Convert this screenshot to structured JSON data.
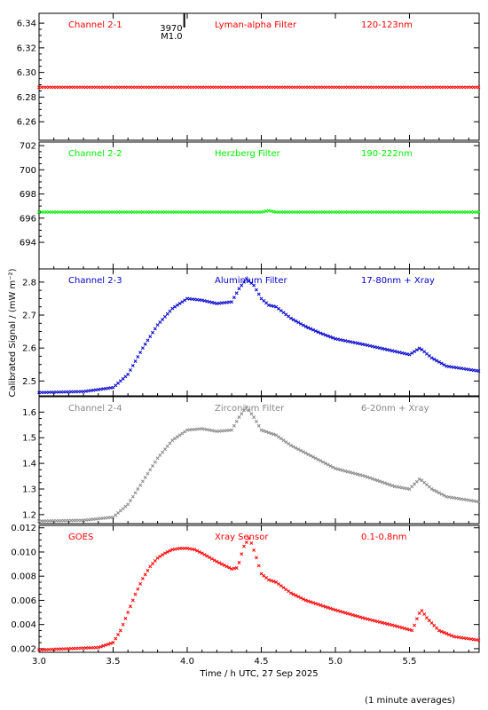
{
  "chart_data": {
    "type": "scatter",
    "xlabel": "Time / h UTC, 27 Sep 2025",
    "ylabel": "Calibrated Signal / (mW m⁻²)",
    "footnote": "(1 minute averages)",
    "xlim": [
      3.0,
      5.97
    ],
    "x_ticks": [
      "3.0",
      "3.5",
      "4.0",
      "4.5",
      "5.0",
      "5.5"
    ],
    "x_tick_values": [
      3.0,
      3.5,
      4.0,
      4.5,
      5.0,
      5.5
    ],
    "annotation": {
      "x": 3.98,
      "lines": [
        "3970",
        "M1.0"
      ]
    },
    "panels": [
      {
        "channel": "Channel 2-1",
        "filter": "Lyman-alpha Filter",
        "band": "120-123nm",
        "color": "#ff0000",
        "ylim": [
          6.245,
          6.348
        ],
        "y_ticks": [
          "6.26",
          "6.28",
          "6.30",
          "6.32",
          "6.34"
        ],
        "y_tick_values": [
          6.26,
          6.28,
          6.3,
          6.32,
          6.34
        ],
        "x": [
          3.0,
          5.97
        ],
        "y": [
          6.288,
          6.288
        ]
      },
      {
        "channel": "Channel 2-2",
        "filter": "Herzberg Filter",
        "band": "190-222nm",
        "color": "#00ee00",
        "ylim": [
          691.8,
          702.3
        ],
        "y_ticks": [
          "694",
          "696",
          "698",
          "700",
          "702"
        ],
        "y_tick_values": [
          694,
          696,
          698,
          700,
          702
        ],
        "x": [
          3.0,
          4.5,
          4.55,
          4.6,
          5.97
        ],
        "y": [
          696.5,
          696.5,
          696.62,
          696.5,
          696.5
        ]
      },
      {
        "channel": "Channel 2-3",
        "filter": "Aluminium Filter",
        "band": "17-80nm + Xray",
        "color": "#0000cc",
        "ylim": [
          2.455,
          2.84
        ],
        "y_ticks": [
          "2.5",
          "2.6",
          "2.7",
          "2.8"
        ],
        "y_tick_values": [
          2.5,
          2.6,
          2.7,
          2.8
        ],
        "x": [
          3.0,
          3.3,
          3.5,
          3.6,
          3.7,
          3.8,
          3.9,
          4.0,
          4.1,
          4.2,
          4.3,
          4.35,
          4.4,
          4.45,
          4.5,
          4.55,
          4.6,
          4.7,
          4.8,
          4.9,
          5.0,
          5.2,
          5.4,
          5.5,
          5.57,
          5.65,
          5.75,
          5.97
        ],
        "y": [
          2.465,
          2.468,
          2.48,
          2.52,
          2.6,
          2.67,
          2.72,
          2.75,
          2.745,
          2.735,
          2.74,
          2.78,
          2.81,
          2.79,
          2.75,
          2.73,
          2.725,
          2.69,
          2.665,
          2.645,
          2.628,
          2.61,
          2.59,
          2.58,
          2.6,
          2.57,
          2.545,
          2.53
        ]
      },
      {
        "channel": "Channel 2-4",
        "filter": "Zirconium Filter",
        "band": "6-20nm + Xray",
        "color": "#888888",
        "ylim": [
          1.165,
          1.66
        ],
        "y_ticks": [
          "1.2",
          "1.3",
          "1.4",
          "1.5",
          "1.6"
        ],
        "y_tick_values": [
          1.2,
          1.3,
          1.4,
          1.5,
          1.6
        ],
        "x": [
          3.0,
          3.3,
          3.5,
          3.6,
          3.7,
          3.8,
          3.9,
          4.0,
          4.1,
          4.2,
          4.3,
          4.35,
          4.4,
          4.45,
          4.5,
          4.55,
          4.6,
          4.7,
          4.8,
          4.9,
          5.0,
          5.2,
          5.4,
          5.5,
          5.57,
          5.65,
          5.75,
          5.97
        ],
        "y": [
          1.175,
          1.178,
          1.19,
          1.24,
          1.33,
          1.42,
          1.49,
          1.53,
          1.535,
          1.525,
          1.53,
          1.58,
          1.62,
          1.58,
          1.53,
          1.52,
          1.51,
          1.47,
          1.44,
          1.41,
          1.38,
          1.35,
          1.31,
          1.3,
          1.34,
          1.3,
          1.27,
          1.25
        ]
      },
      {
        "channel": "GOES",
        "filter": "Xray Sensor",
        "band": "0.1-0.8nm",
        "color": "#ff0000",
        "ylim": [
          0.0017,
          0.0122
        ],
        "y_ticks": [
          "0.002",
          "0.004",
          "0.006",
          "0.008",
          "0.010",
          "0.012"
        ],
        "y_tick_values": [
          0.002,
          0.004,
          0.006,
          0.008,
          0.01,
          0.012
        ],
        "x": [
          3.0,
          3.2,
          3.4,
          3.5,
          3.55,
          3.6,
          3.65,
          3.7,
          3.75,
          3.8,
          3.85,
          3.9,
          3.95,
          4.0,
          4.05,
          4.1,
          4.2,
          4.3,
          4.34,
          4.38,
          4.42,
          4.46,
          4.5,
          4.55,
          4.6,
          4.7,
          4.8,
          4.9,
          5.0,
          5.2,
          5.4,
          5.52,
          5.56,
          5.58,
          5.62,
          5.7,
          5.8,
          5.97
        ],
        "y": [
          0.0019,
          0.002,
          0.0021,
          0.0025,
          0.0035,
          0.005,
          0.0065,
          0.0078,
          0.0088,
          0.0095,
          0.0099,
          0.0102,
          0.0103,
          0.0103,
          0.0102,
          0.0099,
          0.0092,
          0.0086,
          0.0087,
          0.0104,
          0.0112,
          0.0098,
          0.0082,
          0.0077,
          0.0075,
          0.0066,
          0.006,
          0.0056,
          0.0052,
          0.0045,
          0.0039,
          0.0035,
          0.0048,
          0.0052,
          0.0045,
          0.0035,
          0.003,
          0.0027
        ]
      }
    ]
  }
}
